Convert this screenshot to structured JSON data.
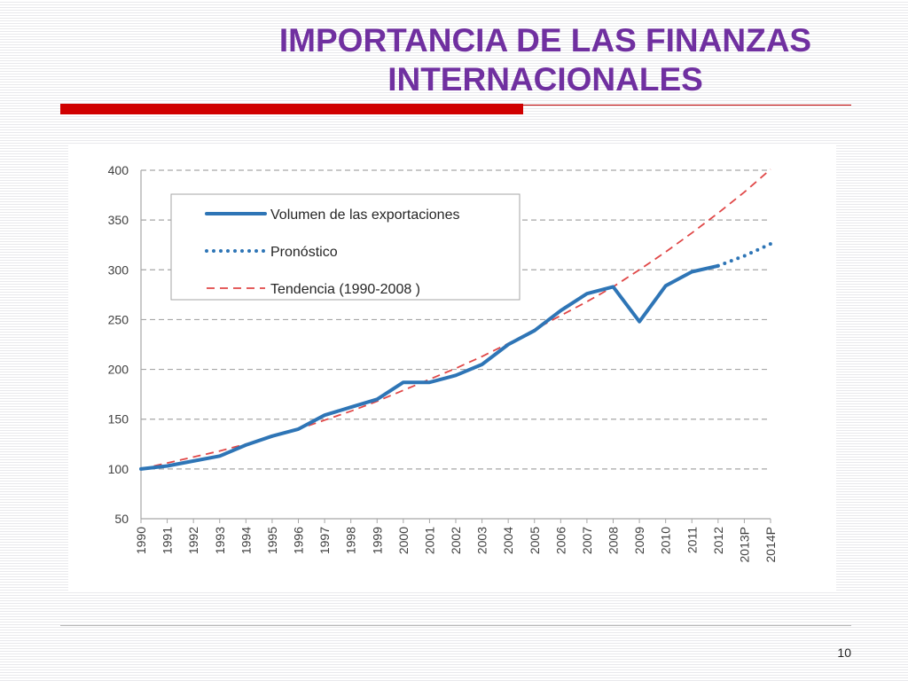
{
  "slide": {
    "title_line1": "IMPORTANCIA DE LAS FINANZAS",
    "title_line2": "INTERNACIONALES",
    "page_number": "10",
    "title_color": "#7030a0",
    "accent_color": "#d00000"
  },
  "chart_data": {
    "type": "line",
    "title": "",
    "xlabel": "",
    "ylabel": "",
    "categories": [
      "1990",
      "1991",
      "1992",
      "1993",
      "1994",
      "1995",
      "1996",
      "1997",
      "1998",
      "1999",
      "2000",
      "2001",
      "2002",
      "2003",
      "2004",
      "2005",
      "2006",
      "2007",
      "2008",
      "2009",
      "2010",
      "2011",
      "2012",
      "2013P",
      "2014P"
    ],
    "ylim": [
      50,
      400
    ],
    "yticks": [
      400,
      350,
      300,
      250,
      200,
      150,
      100,
      50
    ],
    "grid": true,
    "legend_position": "top-left",
    "series": [
      {
        "name": "Volumen de las exportaciones",
        "style": "solid",
        "color": "#2e75b6",
        "values": [
          100,
          103,
          108,
          113,
          124,
          133,
          140,
          154,
          162,
          170,
          187,
          187,
          194,
          205,
          225,
          239,
          259,
          276,
          283,
          248,
          284,
          298,
          304,
          null,
          null
        ]
      },
      {
        "name": "Pronóstico",
        "style": "dotted",
        "color": "#2e75b6",
        "values": [
          null,
          null,
          null,
          null,
          null,
          null,
          null,
          null,
          null,
          null,
          null,
          null,
          null,
          null,
          null,
          null,
          null,
          null,
          null,
          null,
          null,
          null,
          304,
          314,
          326
        ]
      },
      {
        "name": "Tendencia (1990-2008 )",
        "style": "dashed",
        "color": "#e04848",
        "values": [
          100,
          106,
          112,
          118,
          125,
          132,
          140,
          149,
          158,
          168,
          179,
          190,
          201,
          213,
          226,
          240,
          254,
          268,
          283,
          300,
          318,
          337,
          357,
          378,
          401
        ]
      }
    ]
  }
}
